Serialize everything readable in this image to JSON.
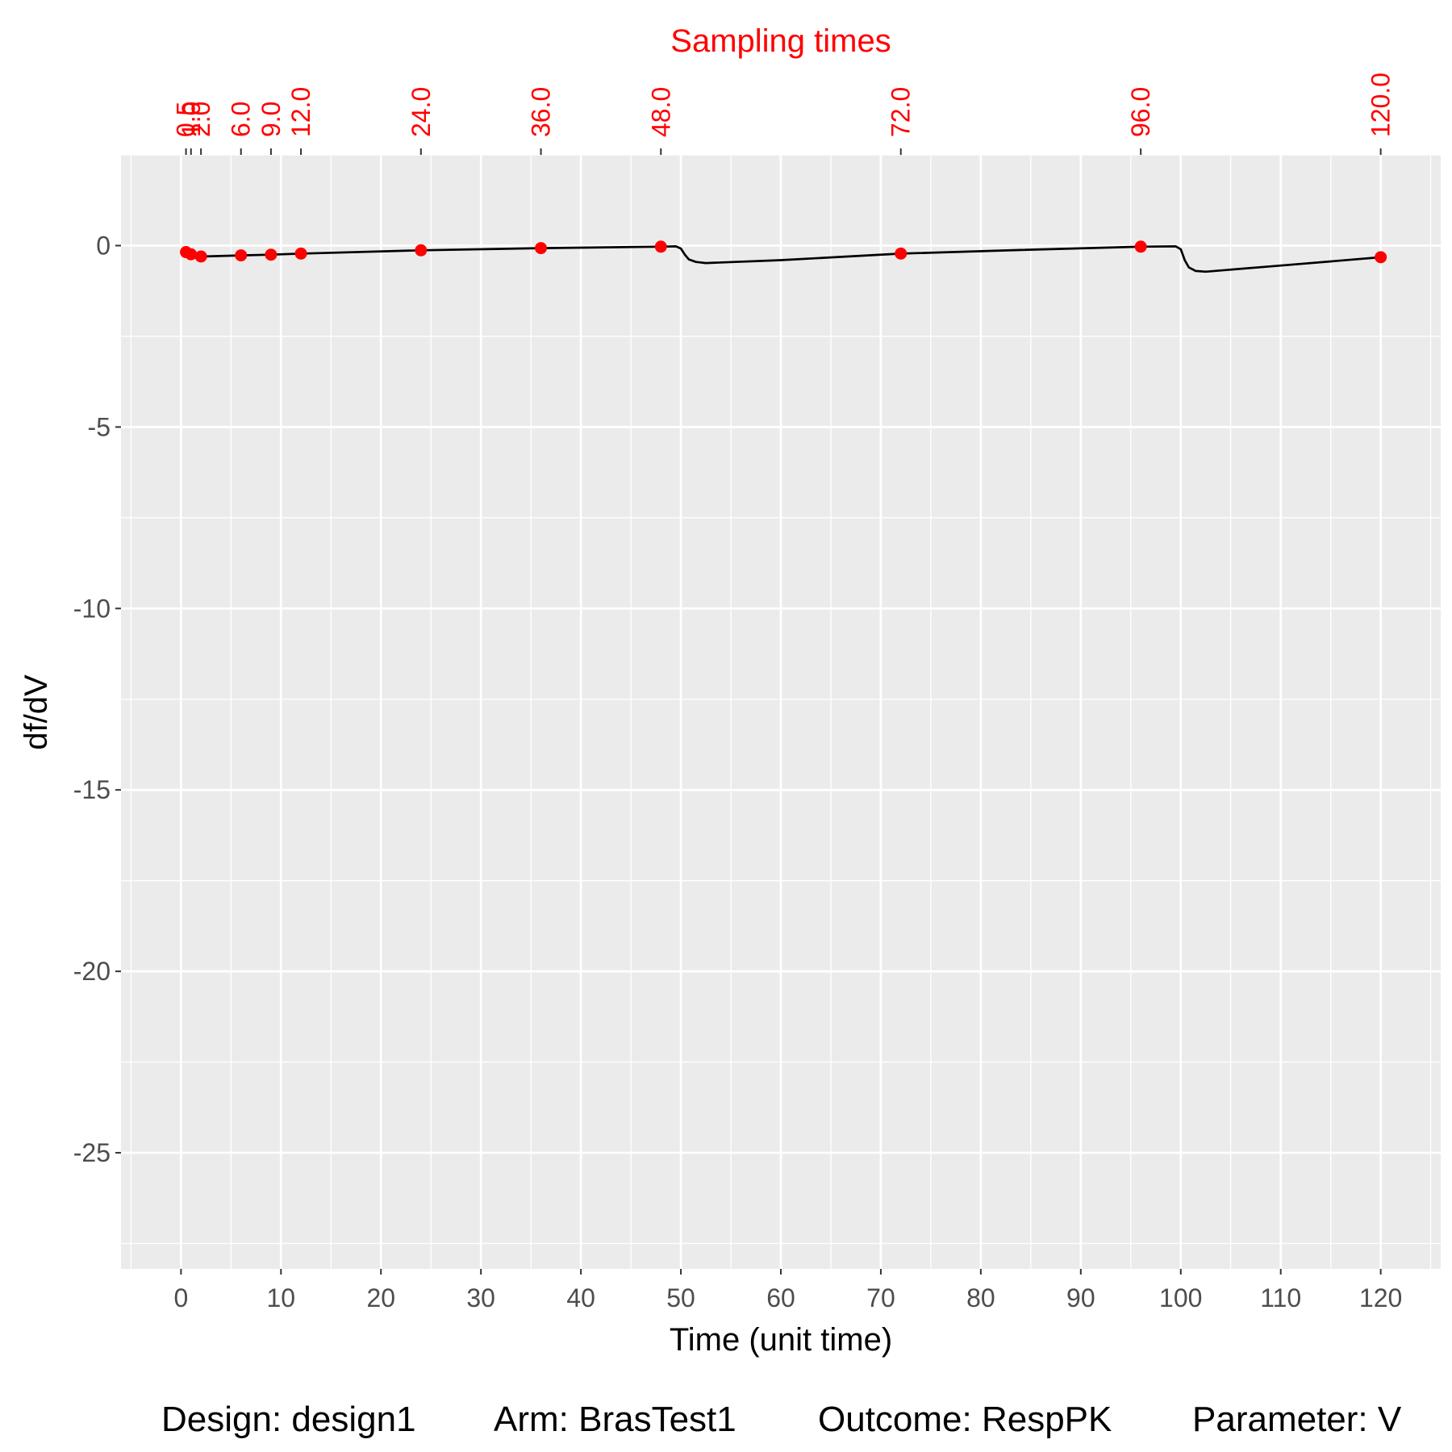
{
  "chart_data": {
    "type": "line",
    "secondary_title": "Sampling times",
    "xlabel": "Time (unit time)",
    "ylabel": "df/dV",
    "xlim": [
      -6,
      126
    ],
    "ylim": [
      -28.2,
      2.5
    ],
    "x_ticks": [
      "0",
      "10",
      "20",
      "30",
      "40",
      "50",
      "60",
      "70",
      "80",
      "90",
      "100",
      "110",
      "120"
    ],
    "y_ticks": [
      "0",
      "-5",
      "-10",
      "-15",
      "-20",
      "-25"
    ],
    "grid": true,
    "sampling_times": [
      {
        "t": 0.5,
        "label": "0.5"
      },
      {
        "t": 1.0,
        "label": "1.0"
      },
      {
        "t": 2.0,
        "label": "2.0"
      },
      {
        "t": 6.0,
        "label": "6.0"
      },
      {
        "t": 9.0,
        "label": "9.0"
      },
      {
        "t": 12.0,
        "label": "12.0"
      },
      {
        "t": 24.0,
        "label": "24.0"
      },
      {
        "t": 36.0,
        "label": "36.0"
      },
      {
        "t": 48.0,
        "label": "48.0"
      },
      {
        "t": 72.0,
        "label": "72.0"
      },
      {
        "t": 96.0,
        "label": "96.0"
      },
      {
        "t": 120.0,
        "label": "120.0"
      }
    ],
    "series": [
      {
        "x": [
          0.0,
          0.5,
          1.0,
          2.0,
          6.0,
          9.0,
          12.0,
          24.0,
          36.0,
          48.0,
          49.5,
          50.0,
          50.4,
          50.8,
          51.5,
          52.5,
          60.0,
          72.0,
          84.0,
          96.0,
          99.5,
          100.0,
          100.4,
          100.8,
          101.5,
          102.5,
          110.0,
          120.0
        ],
        "y": [
          -0.1,
          -0.18,
          -0.24,
          -0.3,
          -0.27,
          -0.25,
          -0.22,
          -0.13,
          -0.07,
          -0.03,
          -0.02,
          -0.08,
          -0.25,
          -0.38,
          -0.45,
          -0.48,
          -0.4,
          -0.22,
          -0.12,
          -0.03,
          -0.02,
          -0.1,
          -0.4,
          -0.6,
          -0.7,
          -0.72,
          -0.55,
          -0.32
        ]
      }
    ],
    "points": [
      {
        "x": 0.5,
        "y": -0.18
      },
      {
        "x": 1.0,
        "y": -0.24
      },
      {
        "x": 2.0,
        "y": -0.3
      },
      {
        "x": 6.0,
        "y": -0.27
      },
      {
        "x": 9.0,
        "y": -0.25
      },
      {
        "x": 12.0,
        "y": -0.22
      },
      {
        "x": 24.0,
        "y": -0.13
      },
      {
        "x": 36.0,
        "y": -0.07
      },
      {
        "x": 48.0,
        "y": -0.03
      },
      {
        "x": 72.0,
        "y": -0.22
      },
      {
        "x": 96.0,
        "y": -0.03
      },
      {
        "x": 120.0,
        "y": -0.32
      }
    ],
    "colors": {
      "panel": "#EBEBEB",
      "grid": "#FFFFFF",
      "line": "#000000",
      "points": "#FF0000",
      "sampling_text": "#FF0000",
      "axis_text": "#4D4D4D"
    }
  },
  "caption": {
    "design": "Design: design1",
    "arm": "Arm: BrasTest1",
    "outcome": "Outcome: RespPK",
    "parameter": "Parameter: V"
  }
}
